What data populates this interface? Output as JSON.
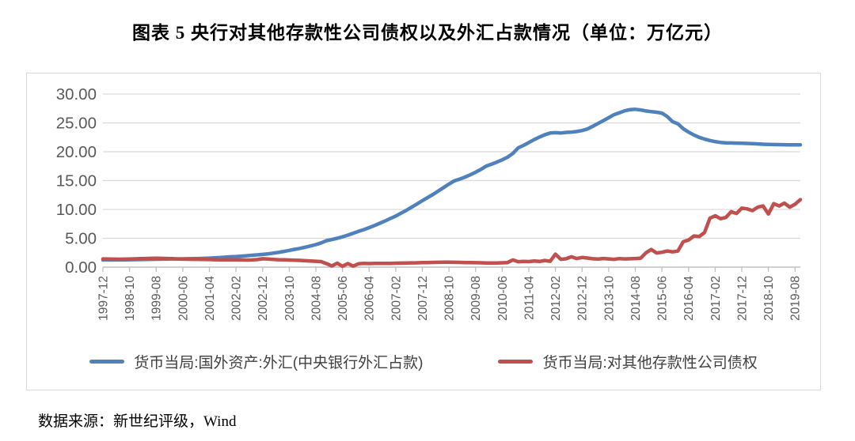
{
  "title": "图表 5  央行对其他存款性公司债权以及外汇占款情况（单位：万亿元）",
  "source_note": "数据来源：新世纪评级，Wind",
  "colors": {
    "series_blue": "#4F81BD",
    "series_red": "#C0504D",
    "gridline": "#d9d9d9",
    "axis_line": "#bfbfbf",
    "tick_label": "#595959",
    "border": "#d9d9d9"
  },
  "chart_data": {
    "type": "line",
    "title": "央行对其他存款性公司债权以及外汇占款情况",
    "unit": "万亿元",
    "grid": true,
    "legend_position": "bottom",
    "ylim": [
      0,
      30
    ],
    "ytick_labels": [
      "30.00",
      "25.00",
      "20.00",
      "15.00",
      "10.00",
      "5.00",
      "0.00"
    ],
    "x_tick_labels": [
      "1997-12",
      "1998-10",
      "1999-08",
      "2000-06",
      "2001-04",
      "2002-02",
      "2002-12",
      "2003-10",
      "2004-08",
      "2005-06",
      "2006-04",
      "2007-02",
      "2007-12",
      "2008-10",
      "2009-08",
      "2010-06",
      "2011-04",
      "2012-02",
      "2012-12",
      "2013-10",
      "2014-08",
      "2015-06",
      "2016-04",
      "2017-02",
      "2017-12",
      "2018-10",
      "2019-08"
    ],
    "x_tick_every": 5,
    "x": [
      "1997-12",
      "1998-02",
      "1998-04",
      "1998-06",
      "1998-08",
      "1998-10",
      "1998-12",
      "1999-02",
      "1999-04",
      "1999-06",
      "1999-08",
      "1999-10",
      "1999-12",
      "2000-02",
      "2000-04",
      "2000-06",
      "2000-08",
      "2000-10",
      "2000-12",
      "2001-02",
      "2001-04",
      "2001-06",
      "2001-08",
      "2001-10",
      "2001-12",
      "2002-02",
      "2002-04",
      "2002-06",
      "2002-08",
      "2002-10",
      "2002-12",
      "2003-02",
      "2003-04",
      "2003-06",
      "2003-08",
      "2003-10",
      "2003-12",
      "2004-02",
      "2004-04",
      "2004-06",
      "2004-08",
      "2004-10",
      "2004-12",
      "2005-02",
      "2005-04",
      "2005-06",
      "2005-08",
      "2005-10",
      "2005-12",
      "2006-02",
      "2006-04",
      "2006-06",
      "2006-08",
      "2006-10",
      "2006-12",
      "2007-02",
      "2007-04",
      "2007-06",
      "2007-08",
      "2007-10",
      "2007-12",
      "2008-02",
      "2008-04",
      "2008-06",
      "2008-08",
      "2008-10",
      "2008-12",
      "2009-02",
      "2009-04",
      "2009-06",
      "2009-08",
      "2009-10",
      "2009-12",
      "2010-02",
      "2010-04",
      "2010-06",
      "2010-08",
      "2010-10",
      "2010-12",
      "2011-02",
      "2011-04",
      "2011-06",
      "2011-08",
      "2011-10",
      "2011-12",
      "2012-02",
      "2012-04",
      "2012-06",
      "2012-08",
      "2012-10",
      "2012-12",
      "2013-02",
      "2013-04",
      "2013-06",
      "2013-08",
      "2013-10",
      "2013-12",
      "2014-02",
      "2014-04",
      "2014-06",
      "2014-08",
      "2014-10",
      "2014-12",
      "2015-02",
      "2015-04",
      "2015-06",
      "2015-08",
      "2015-10",
      "2015-12",
      "2016-02",
      "2016-04",
      "2016-06",
      "2016-08",
      "2016-10",
      "2016-12",
      "2017-02",
      "2017-04",
      "2017-06",
      "2017-08",
      "2017-10",
      "2017-12",
      "2018-02",
      "2018-04",
      "2018-06",
      "2018-08",
      "2018-10",
      "2018-12",
      "2019-02",
      "2019-04",
      "2019-06",
      "2019-08",
      "2019-10"
    ],
    "series": [
      {
        "name": "货币当局:国外资产:外汇(中央银行外汇占款)",
        "color": "#4F81BD",
        "values": [
          1.25,
          1.26,
          1.26,
          1.27,
          1.28,
          1.29,
          1.3,
          1.31,
          1.33,
          1.35,
          1.37,
          1.39,
          1.41,
          1.42,
          1.43,
          1.44,
          1.45,
          1.47,
          1.49,
          1.52,
          1.56,
          1.61,
          1.66,
          1.72,
          1.79,
          1.84,
          1.9,
          1.97,
          2.05,
          2.13,
          2.21,
          2.3,
          2.42,
          2.56,
          2.72,
          2.9,
          3.08,
          3.25,
          3.45,
          3.67,
          3.9,
          4.2,
          4.59,
          4.78,
          5.0,
          5.25,
          5.55,
          5.88,
          6.21,
          6.5,
          6.85,
          7.2,
          7.6,
          8.0,
          8.44,
          8.85,
          9.35,
          9.85,
          10.4,
          10.95,
          11.52,
          12.05,
          12.6,
          13.2,
          13.8,
          14.4,
          14.96,
          15.25,
          15.6,
          16.0,
          16.45,
          16.95,
          17.52,
          17.85,
          18.2,
          18.6,
          19.05,
          19.7,
          20.68,
          21.1,
          21.6,
          22.1,
          22.55,
          22.95,
          23.24,
          23.3,
          23.25,
          23.35,
          23.4,
          23.5,
          23.67,
          23.95,
          24.4,
          24.9,
          25.4,
          25.9,
          26.43,
          26.75,
          27.1,
          27.3,
          27.35,
          27.25,
          27.07,
          26.95,
          26.85,
          26.7,
          26.1,
          25.2,
          24.85,
          24.0,
          23.4,
          22.9,
          22.5,
          22.2,
          21.94,
          21.75,
          21.62,
          21.55,
          21.52,
          21.5,
          21.48,
          21.44,
          21.4,
          21.36,
          21.3,
          21.27,
          21.25,
          21.23,
          21.22,
          21.21,
          21.2,
          21.2
        ]
      },
      {
        "name": "货币当局:对其他存款性公司债权",
        "color": "#C0504D",
        "values": [
          1.42,
          1.4,
          1.38,
          1.37,
          1.39,
          1.41,
          1.44,
          1.47,
          1.5,
          1.52,
          1.53,
          1.52,
          1.5,
          1.46,
          1.42,
          1.39,
          1.37,
          1.36,
          1.35,
          1.33,
          1.31,
          1.29,
          1.28,
          1.27,
          1.28,
          1.26,
          1.24,
          1.23,
          1.25,
          1.32,
          1.45,
          1.4,
          1.34,
          1.29,
          1.26,
          1.23,
          1.21,
          1.16,
          1.11,
          1.06,
          1.01,
          0.96,
          0.6,
          0.2,
          0.68,
          0.15,
          0.62,
          0.18,
          0.58,
          0.64,
          0.62,
          0.64,
          0.65,
          0.64,
          0.66,
          0.68,
          0.7,
          0.72,
          0.74,
          0.76,
          0.79,
          0.8,
          0.82,
          0.84,
          0.85,
          0.86,
          0.84,
          0.82,
          0.8,
          0.78,
          0.77,
          0.75,
          0.72,
          0.71,
          0.73,
          0.76,
          0.8,
          1.25,
          0.95,
          1.0,
          0.96,
          1.05,
          0.98,
          1.15,
          1.02,
          2.25,
          1.35,
          1.45,
          1.8,
          1.5,
          1.67,
          1.58,
          1.45,
          1.4,
          1.5,
          1.42,
          1.35,
          1.48,
          1.42,
          1.45,
          1.5,
          1.55,
          2.5,
          3.05,
          2.45,
          2.58,
          2.8,
          2.65,
          2.8,
          4.4,
          4.7,
          5.4,
          5.3,
          6.0,
          8.47,
          8.9,
          8.4,
          8.6,
          9.6,
          9.3,
          10.22,
          10.1,
          9.8,
          10.4,
          10.6,
          9.2,
          11.0,
          10.6,
          11.1,
          10.4,
          10.9,
          11.7
        ]
      }
    ]
  }
}
